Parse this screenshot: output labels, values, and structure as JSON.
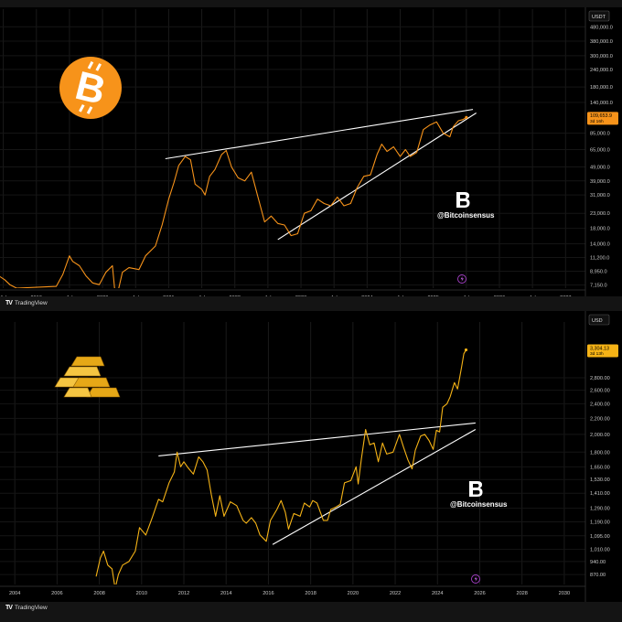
{
  "chart_data": [
    {
      "type": "line",
      "unit_badge": "USDT",
      "price_tag": {
        "value": "109,653.9",
        "sub": "3d 16h"
      },
      "watermark": "@Bitcoinsensus",
      "colors": {
        "line": "#f7931a",
        "logo": "#f7931a",
        "trend": "#ffffff",
        "tag": "#f7931a"
      },
      "scale": "log",
      "ylim": [
        6800,
        640000
      ],
      "xlim": [
        2018.45,
        2027.3
      ],
      "y_ticks": [
        "480,000.0",
        "380,000.0",
        "300,000.0",
        "240,000.0",
        "180,000.0",
        "140,000.0",
        "85,000.0",
        "65,000.0",
        "49,000.0",
        "39,000.0",
        "31,000.0",
        "23,000.0",
        "18,000.0",
        "14,000.0",
        "11,200.0",
        "8,950.0",
        "7,150.0"
      ],
      "x_ticks": [
        "Jul",
        "2019",
        "Jul",
        "2020",
        "Jul",
        "2021",
        "Jul",
        "2022",
        "Jul",
        "2023",
        "Jul",
        "2024",
        "Jul",
        "2025",
        "Jul",
        "2026",
        "Jul",
        "2027"
      ],
      "x_tick_positions": [
        2018.5,
        2019.0,
        2019.5,
        2020.0,
        2020.5,
        2021.0,
        2021.5,
        2022.0,
        2022.5,
        2023.0,
        2023.5,
        2024.0,
        2024.5,
        2025.0,
        2025.5,
        2026.0,
        2026.5,
        2027.0
      ],
      "series": [
        {
          "values": [
            [
              2018.45,
              8200
            ],
            [
              2018.52,
              7800
            ],
            [
              2018.6,
              7200
            ],
            [
              2018.7,
              6800
            ],
            [
              2019.3,
              7000
            ],
            [
              2019.4,
              8500
            ],
            [
              2019.5,
              11500
            ],
            [
              2019.55,
              10500
            ],
            [
              2019.65,
              9800
            ],
            [
              2019.75,
              8300
            ],
            [
              2019.85,
              7400
            ],
            [
              2019.95,
              7200
            ],
            [
              2020.05,
              8800
            ],
            [
              2020.15,
              9800
            ],
            [
              2020.2,
              5500
            ],
            [
              2020.3,
              8800
            ],
            [
              2020.4,
              9500
            ],
            [
              2020.55,
              9200
            ],
            [
              2020.65,
              11500
            ],
            [
              2020.8,
              13500
            ],
            [
              2020.9,
              19000
            ],
            [
              2021.0,
              29000
            ],
            [
              2021.08,
              38000
            ],
            [
              2021.15,
              50000
            ],
            [
              2021.25,
              58000
            ],
            [
              2021.33,
              55000
            ],
            [
              2021.4,
              37000
            ],
            [
              2021.5,
              34000
            ],
            [
              2021.55,
              31000
            ],
            [
              2021.62,
              42000
            ],
            [
              2021.7,
              47000
            ],
            [
              2021.8,
              60000
            ],
            [
              2021.87,
              64000
            ],
            [
              2021.95,
              49000
            ],
            [
              2022.05,
              41000
            ],
            [
              2022.15,
              39000
            ],
            [
              2022.25,
              45000
            ],
            [
              2022.35,
              30000
            ],
            [
              2022.45,
              20000
            ],
            [
              2022.55,
              22000
            ],
            [
              2022.65,
              19500
            ],
            [
              2022.75,
              19000
            ],
            [
              2022.85,
              16000
            ],
            [
              2022.95,
              16500
            ],
            [
              2023.05,
              23000
            ],
            [
              2023.15,
              24000
            ],
            [
              2023.25,
              29000
            ],
            [
              2023.35,
              27000
            ],
            [
              2023.45,
              26000
            ],
            [
              2023.55,
              30000
            ],
            [
              2023.65,
              26000
            ],
            [
              2023.75,
              27000
            ],
            [
              2023.85,
              35000
            ],
            [
              2023.95,
              42000
            ],
            [
              2024.05,
              43000
            ],
            [
              2024.15,
              60000
            ],
            [
              2024.22,
              71000
            ],
            [
              2024.3,
              63000
            ],
            [
              2024.4,
              68000
            ],
            [
              2024.5,
              58000
            ],
            [
              2024.58,
              65000
            ],
            [
              2024.65,
              58000
            ],
            [
              2024.75,
              62000
            ],
            [
              2024.85,
              90000
            ],
            [
              2024.95,
              97000
            ],
            [
              2025.05,
              102000
            ],
            [
              2025.15,
              85000
            ],
            [
              2025.25,
              80000
            ],
            [
              2025.3,
              94000
            ],
            [
              2025.38,
              104000
            ],
            [
              2025.45,
              106000
            ],
            [
              2025.5,
              109653
            ]
          ]
        }
      ],
      "trendlines": [
        [
          [
            2020.95,
            56000
          ],
          [
            2025.6,
            125000
          ]
        ],
        [
          [
            2022.65,
            15000
          ],
          [
            2025.65,
            118000
          ]
        ]
      ]
    },
    {
      "type": "line",
      "unit_badge": "USD",
      "price_tag": {
        "value": "3,304.13",
        "sub": "3d 13h"
      },
      "watermark": "@Bitcoinsensus",
      "colors": {
        "line": "#f5b316",
        "logo": "#ffffff",
        "trend": "#ffffff",
        "tag": "#f5b316"
      },
      "scale": "log",
      "ylim": [
        820,
        3900
      ],
      "xlim": [
        2003.3,
        2031.0
      ],
      "y_ticks": [
        "2,800.00",
        "2,600.00",
        "2,400.00",
        "2,200.00",
        "2,000.00",
        "1,800.00",
        "1,650.00",
        "1,530.00",
        "1,410.00",
        "1,290.00",
        "1,190.00",
        "1,095.00",
        "1,010.00",
        "940.00",
        "870.00"
      ],
      "x_ticks": [
        "2004",
        "2006",
        "2008",
        "2010",
        "2012",
        "2014",
        "2016",
        "2018",
        "2020",
        "2022",
        "2024",
        "2026",
        "2028",
        "2030"
      ],
      "x_tick_positions": [
        2004,
        2006,
        2008,
        2010,
        2012,
        2014,
        2016,
        2018,
        2020,
        2022,
        2024,
        2026,
        2028,
        2030
      ],
      "series": [
        {
          "values": [
            [
              2007.85,
              860
            ],
            [
              2008.05,
              960
            ],
            [
              2008.2,
              1000
            ],
            [
              2008.4,
              920
            ],
            [
              2008.6,
              900
            ],
            [
              2008.75,
              800
            ],
            [
              2008.9,
              870
            ],
            [
              2009.1,
              920
            ],
            [
              2009.4,
              940
            ],
            [
              2009.7,
              1000
            ],
            [
              2009.9,
              1150
            ],
            [
              2010.2,
              1100
            ],
            [
              2010.5,
              1220
            ],
            [
              2010.8,
              1360
            ],
            [
              2011.0,
              1340
            ],
            [
              2011.3,
              1500
            ],
            [
              2011.55,
              1600
            ],
            [
              2011.68,
              1800
            ],
            [
              2011.85,
              1650
            ],
            [
              2012.0,
              1700
            ],
            [
              2012.2,
              1640
            ],
            [
              2012.45,
              1580
            ],
            [
              2012.7,
              1750
            ],
            [
              2012.9,
              1700
            ],
            [
              2013.1,
              1620
            ],
            [
              2013.3,
              1400
            ],
            [
              2013.5,
              1230
            ],
            [
              2013.7,
              1390
            ],
            [
              2013.9,
              1230
            ],
            [
              2014.2,
              1340
            ],
            [
              2014.5,
              1310
            ],
            [
              2014.8,
              1200
            ],
            [
              2014.95,
              1180
            ],
            [
              2015.2,
              1220
            ],
            [
              2015.4,
              1180
            ],
            [
              2015.6,
              1100
            ],
            [
              2015.9,
              1060
            ],
            [
              2016.1,
              1200
            ],
            [
              2016.4,
              1280
            ],
            [
              2016.6,
              1350
            ],
            [
              2016.8,
              1260
            ],
            [
              2016.95,
              1140
            ],
            [
              2017.2,
              1250
            ],
            [
              2017.5,
              1230
            ],
            [
              2017.7,
              1330
            ],
            [
              2017.95,
              1300
            ],
            [
              2018.1,
              1350
            ],
            [
              2018.3,
              1330
            ],
            [
              2018.6,
              1200
            ],
            [
              2018.8,
              1200
            ],
            [
              2018.95,
              1280
            ],
            [
              2019.2,
              1300
            ],
            [
              2019.4,
              1320
            ],
            [
              2019.6,
              1500
            ],
            [
              2019.9,
              1520
            ],
            [
              2020.15,
              1650
            ],
            [
              2020.25,
              1490
            ],
            [
              2020.4,
              1730
            ],
            [
              2020.6,
              2060
            ],
            [
              2020.8,
              1880
            ],
            [
              2021.0,
              1900
            ],
            [
              2021.2,
              1700
            ],
            [
              2021.4,
              1900
            ],
            [
              2021.6,
              1780
            ],
            [
              2021.9,
              1800
            ],
            [
              2022.2,
              2000
            ],
            [
              2022.4,
              1850
            ],
            [
              2022.6,
              1720
            ],
            [
              2022.8,
              1630
            ],
            [
              2022.95,
              1820
            ],
            [
              2023.2,
              1980
            ],
            [
              2023.4,
              2000
            ],
            [
              2023.6,
              1930
            ],
            [
              2023.8,
              1830
            ],
            [
              2023.95,
              2050
            ],
            [
              2024.1,
              2030
            ],
            [
              2024.25,
              2350
            ],
            [
              2024.45,
              2400
            ],
            [
              2024.6,
              2500
            ],
            [
              2024.8,
              2720
            ],
            [
              2024.95,
              2620
            ],
            [
              2025.05,
              2800
            ],
            [
              2025.15,
              3000
            ],
            [
              2025.25,
              3230
            ],
            [
              2025.35,
              3304
            ]
          ]
        }
      ],
      "trendlines": [
        [
          [
            2010.8,
            1760
          ],
          [
            2025.8,
            2140
          ]
        ],
        [
          [
            2016.2,
            1040
          ],
          [
            2025.8,
            2060
          ]
        ]
      ]
    }
  ]
}
